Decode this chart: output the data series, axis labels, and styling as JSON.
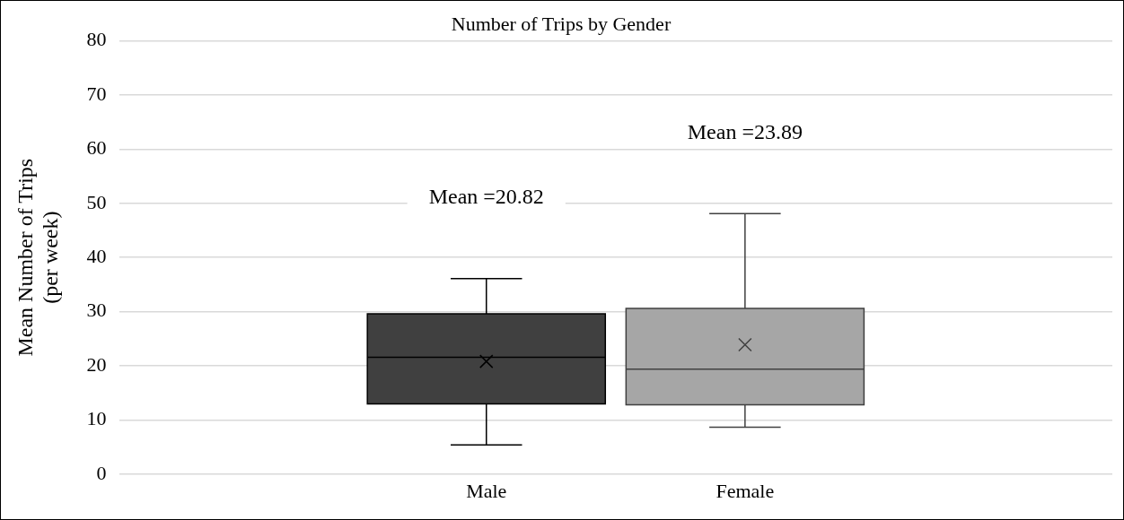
{
  "chart_data": {
    "type": "box",
    "title": "Number of Trips by Gender",
    "ylabel": "Mean Number of Trips\n(per week)",
    "categories": [
      "Male",
      "Female"
    ],
    "series": [
      {
        "color": "#404040",
        "boxes": [
          {
            "low": 5.4,
            "q1": 13,
            "median": 21.6,
            "q3": 29.6,
            "high": 36.1,
            "mean": 20.82
          },
          null
        ]
      },
      {
        "color": "#a6a6a6",
        "boxes": [
          null,
          {
            "low": 8.7,
            "q1": 12.8,
            "median": 19.4,
            "q3": 30.6,
            "high": 48.1,
            "mean": 23.89
          }
        ]
      }
    ],
    "ylim": [
      0,
      80
    ],
    "yticks": [
      0,
      10,
      20,
      30,
      40,
      50,
      60,
      70,
      80
    ],
    "grid": "y",
    "legend": false,
    "marker": "cross",
    "annotations": [
      "Mean =20.82",
      "Mean =23.89"
    ]
  }
}
